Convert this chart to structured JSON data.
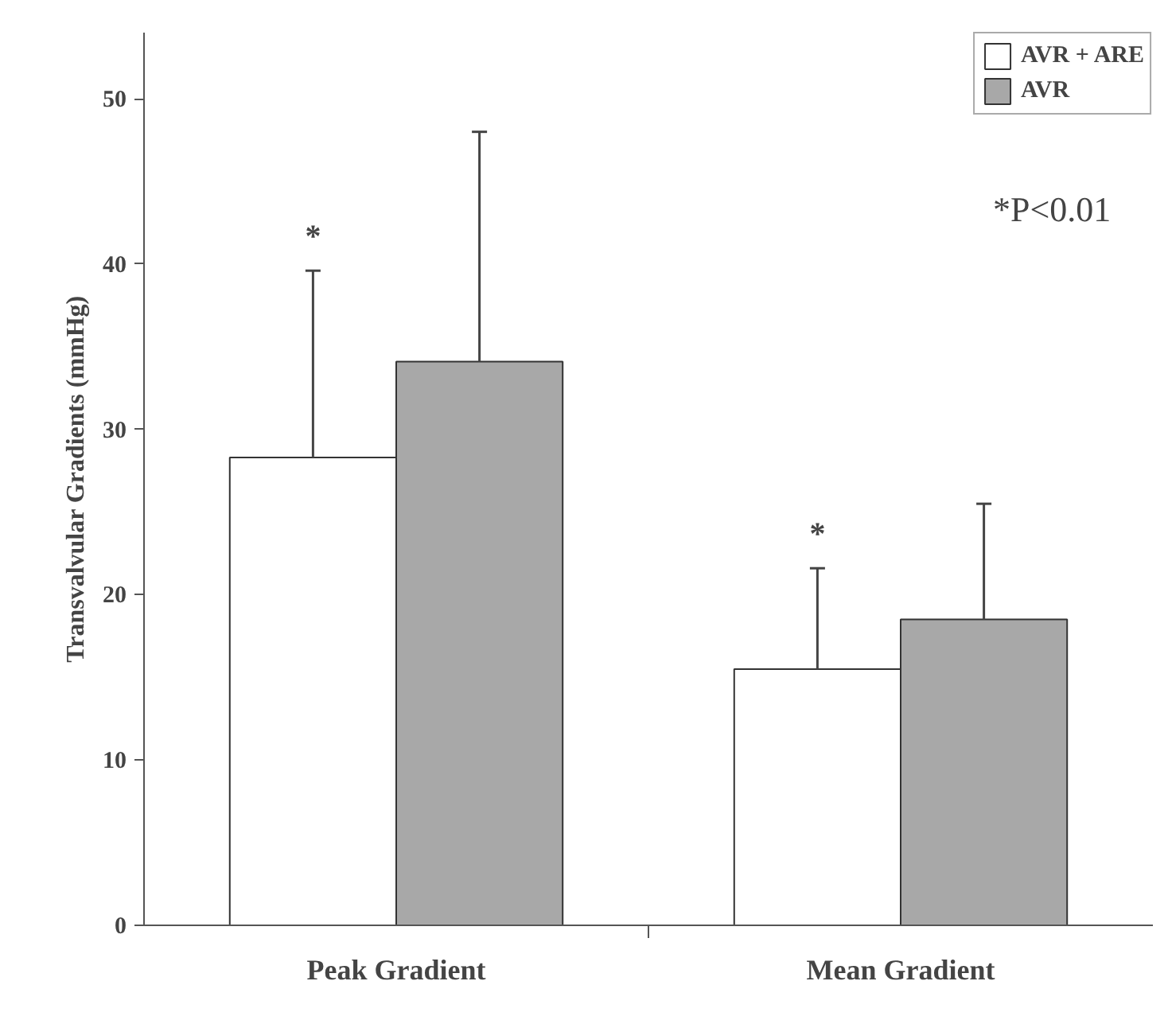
{
  "chart_data": {
    "type": "bar",
    "ylabel": "Transvalvular Gradients (mmHg)",
    "categories": [
      "Peak Gradient",
      "Mean Gradient"
    ],
    "series": [
      {
        "name": "AVR + ARE",
        "color": "#ffffff",
        "values": [
          28.3,
          15.5
        ],
        "errors": [
          [
            28.3,
            39.6
          ],
          [
            15.5,
            21.6
          ]
        ]
      },
      {
        "name": "AVR",
        "color": "#a8a8a8",
        "values": [
          34.1,
          18.5
        ],
        "errors": [
          [
            34.1,
            48.0
          ],
          [
            18.5,
            25.5
          ]
        ]
      }
    ],
    "ylim": [
      0,
      54
    ],
    "yticks": [
      0,
      10,
      20,
      30,
      40,
      50
    ],
    "grid": false,
    "legend": "top right",
    "annotations": [
      "*",
      "*",
      "*P<0.01"
    ]
  }
}
